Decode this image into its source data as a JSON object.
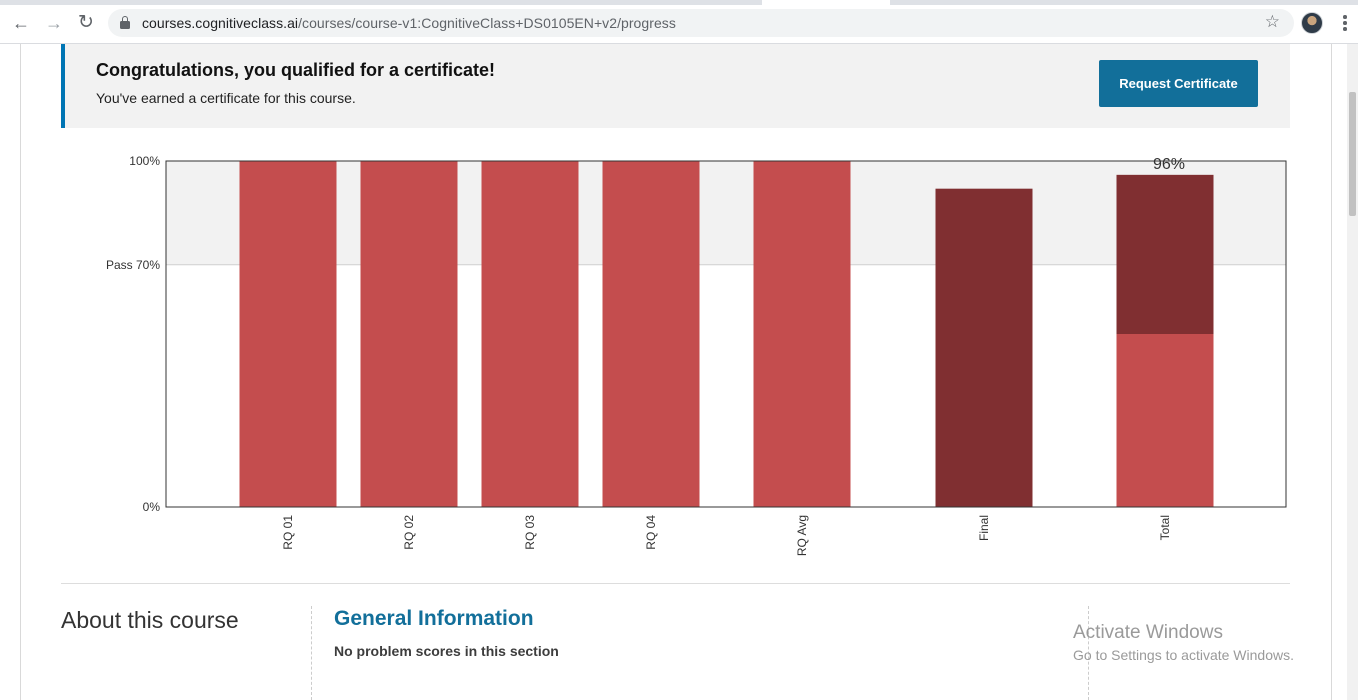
{
  "browser": {
    "url_host": "courses.cognitiveclass.ai",
    "url_path": "/courses/course-v1:CognitiveClass+DS0105EN+v2/progress"
  },
  "banner": {
    "title": "Congratulations, you qualified for a certificate!",
    "subtitle": "You've earned a certificate for this course.",
    "button_label": "Request Certificate"
  },
  "chart_data": {
    "type": "bar",
    "title": "",
    "xlabel": "",
    "ylabel": "",
    "ylim": [
      0,
      100
    ],
    "y_ticks": [
      {
        "value": 100,
        "label": "100%"
      },
      {
        "value": 70,
        "label": "Pass 70%"
      },
      {
        "value": 0,
        "label": "0%"
      }
    ],
    "pass_threshold": 70,
    "categories": [
      "RQ 01",
      "RQ 02",
      "RQ 03",
      "RQ 04",
      "RQ Avg",
      "Final",
      "Total"
    ],
    "series": [
      {
        "values": [
          100,
          100,
          100,
          100,
          100,
          0,
          50
        ],
        "color": "#c44d4e"
      },
      {
        "values": [
          0,
          0,
          0,
          0,
          0,
          92,
          46
        ],
        "color": "#802f31"
      }
    ],
    "total_label": "96%",
    "colors": {
      "upper_band": "#f2f2f2",
      "frame": "#333333"
    }
  },
  "about": {
    "title": "About this course",
    "section_title": "General Information",
    "section_note": "No problem scores in this section"
  },
  "watermark": {
    "title": "Activate Windows",
    "subtitle": "Go to Settings to activate Windows."
  }
}
